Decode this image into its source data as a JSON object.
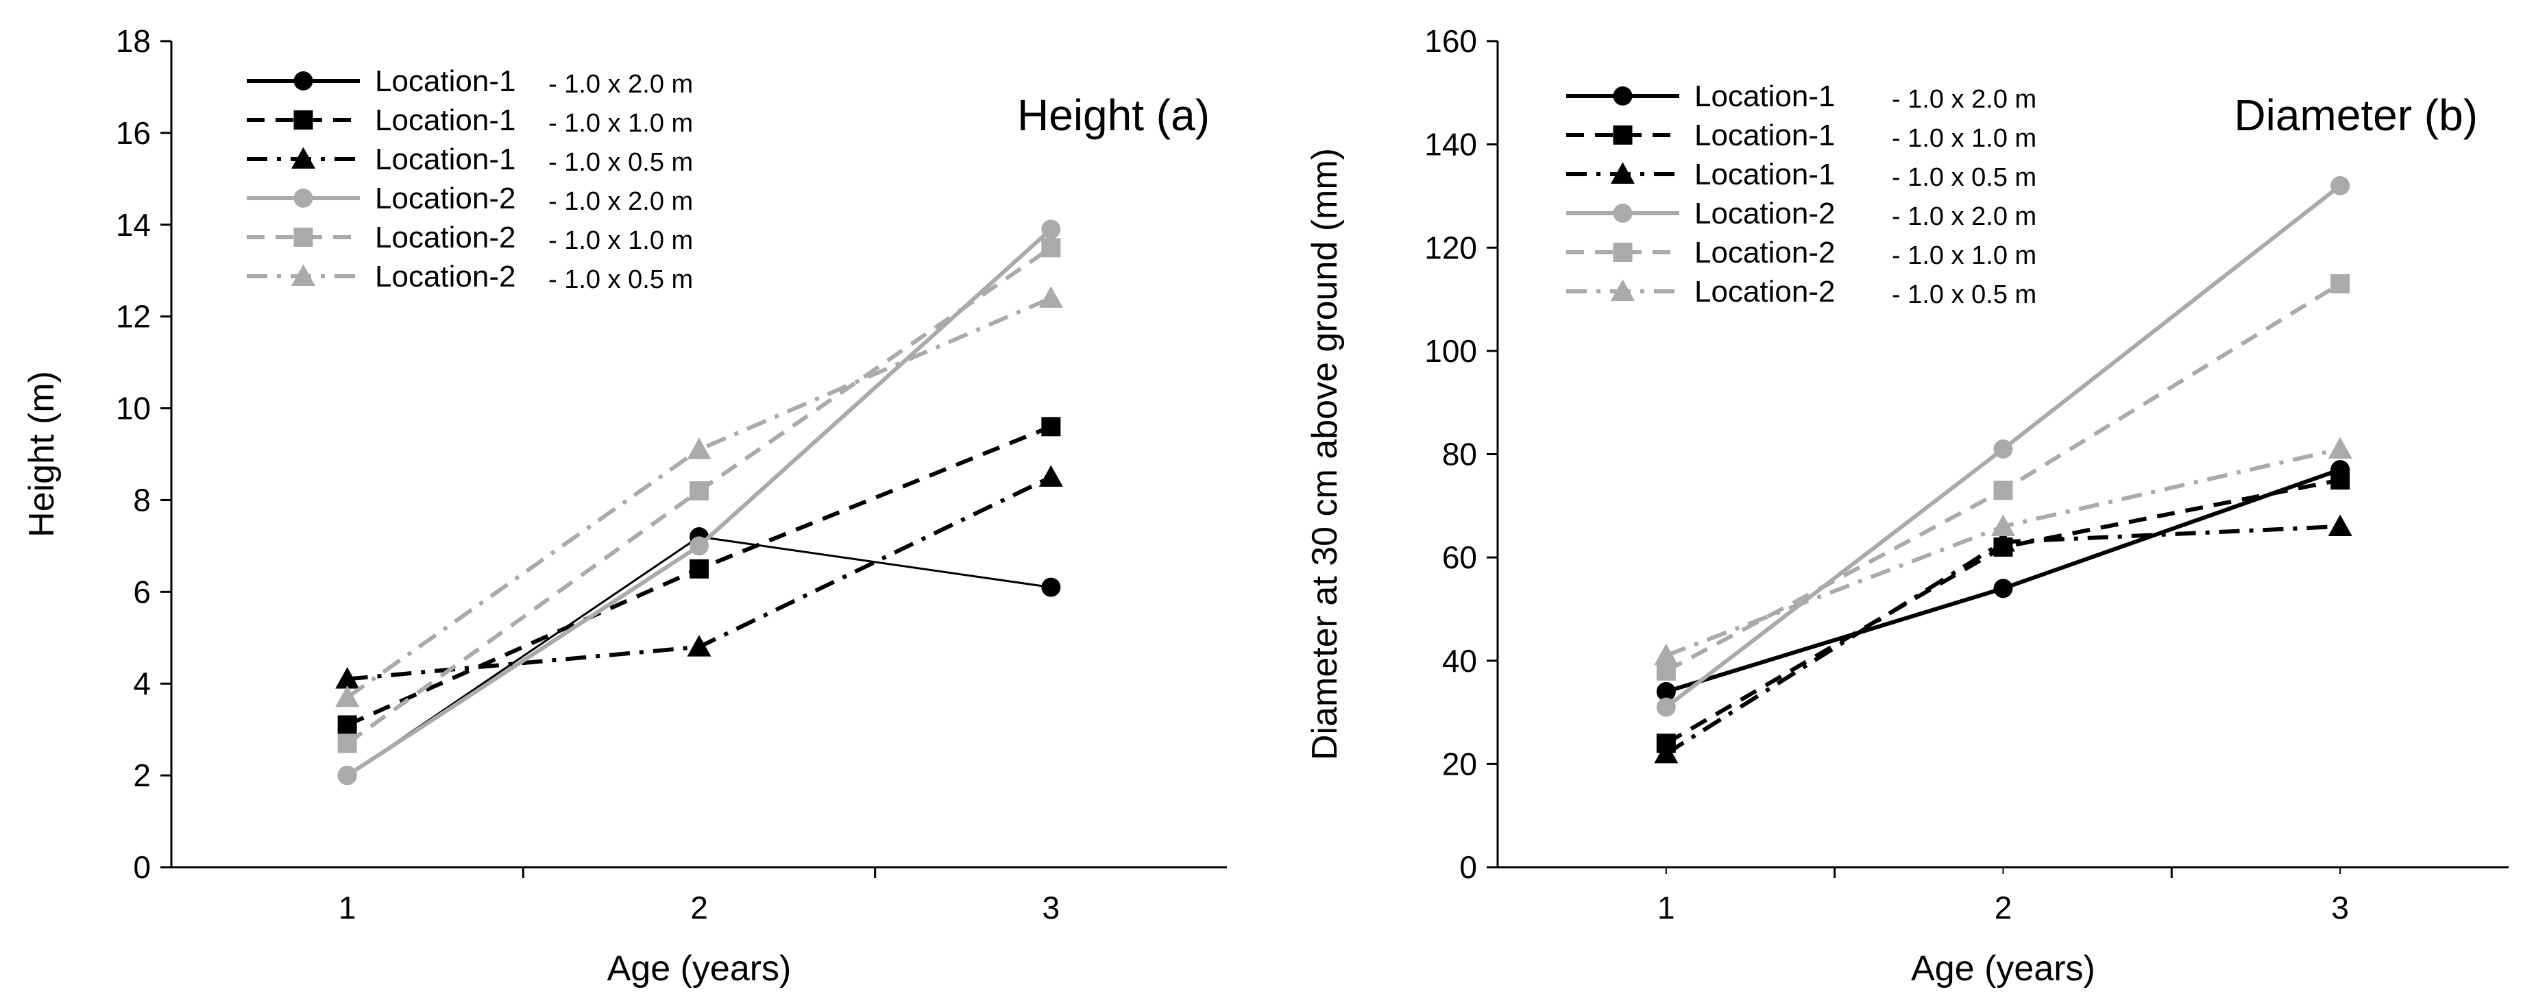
{
  "chart_data": [
    {
      "type": "line",
      "title": "Height (a)",
      "xlabel": "Age (years)",
      "ylabel": "Height (m)",
      "x": [
        1,
        2,
        3
      ],
      "xlim": [
        0.5,
        3.5
      ],
      "ylim": [
        0,
        18
      ],
      "yticks": [
        0,
        2,
        4,
        6,
        8,
        10,
        12,
        14,
        16,
        18
      ],
      "xticks": [
        1,
        2,
        3
      ],
      "legend_position": "top-left",
      "series": [
        {
          "name": "Location-1",
          "spacing": "- 1.0 x 2.0 m",
          "values": [
            2.0,
            7.2,
            6.1
          ],
          "color": "#000000",
          "dash": "solid",
          "marker": "circle"
        },
        {
          "name": "Location-1",
          "spacing": "- 1.0 x 1.0 m",
          "values": [
            3.1,
            6.5,
            9.6
          ],
          "color": "#000000",
          "dash": "dash",
          "marker": "square"
        },
        {
          "name": "Location-1",
          "spacing": "- 1.0 x 0.5 m",
          "values": [
            4.1,
            4.8,
            8.5
          ],
          "color": "#000000",
          "dash": "dashdot",
          "marker": "triangle"
        },
        {
          "name": "Location-2",
          "spacing": "- 1.0 x 2.0 m",
          "values": [
            2.0,
            7.0,
            13.9
          ],
          "color": "#aaaaaa",
          "dash": "solid",
          "marker": "circle"
        },
        {
          "name": "Location-2",
          "spacing": "- 1.0 x 1.0 m",
          "values": [
            2.7,
            8.2,
            13.5
          ],
          "color": "#aaaaaa",
          "dash": "dash",
          "marker": "square"
        },
        {
          "name": "Location-2",
          "spacing": "- 1.0 x 0.5 m",
          "values": [
            3.7,
            9.1,
            12.4
          ],
          "color": "#aaaaaa",
          "dash": "dashdot",
          "marker": "triangle"
        }
      ]
    },
    {
      "type": "line",
      "title": "Diameter (b)",
      "xlabel": "Age (years)",
      "ylabel": "Diameter at 30 cm above ground (mm)",
      "x": [
        1,
        2,
        3
      ],
      "xlim": [
        0.5,
        3.5
      ],
      "ylim": [
        0,
        160
      ],
      "yticks": [
        0,
        20,
        40,
        60,
        80,
        100,
        120,
        140,
        160
      ],
      "xticks": [
        1,
        2,
        3
      ],
      "legend_position": "top-left",
      "series": [
        {
          "name": "Location-1",
          "spacing": "- 1.0 x 2.0 m",
          "values": [
            34,
            54,
            77
          ],
          "color": "#000000",
          "dash": "solid",
          "marker": "circle"
        },
        {
          "name": "Location-1",
          "spacing": "- 1.0 x 1.0 m",
          "values": [
            24,
            62,
            75
          ],
          "color": "#000000",
          "dash": "dash",
          "marker": "square"
        },
        {
          "name": "Location-1",
          "spacing": "- 1.0 x 0.5 m",
          "values": [
            22,
            63,
            66
          ],
          "color": "#000000",
          "dash": "dashdot",
          "marker": "triangle"
        },
        {
          "name": "Location-2",
          "spacing": "- 1.0 x 2.0 m",
          "values": [
            31,
            81,
            132
          ],
          "color": "#aaaaaa",
          "dash": "solid",
          "marker": "circle"
        },
        {
          "name": "Location-2",
          "spacing": "- 1.0 x 1.0 m",
          "values": [
            38,
            73,
            113
          ],
          "color": "#aaaaaa",
          "dash": "dash",
          "marker": "square"
        },
        {
          "name": "Location-2",
          "spacing": "- 1.0 x 0.5 m",
          "values": [
            41,
            66,
            81
          ],
          "color": "#aaaaaa",
          "dash": "dashdot",
          "marker": "triangle"
        }
      ]
    }
  ]
}
